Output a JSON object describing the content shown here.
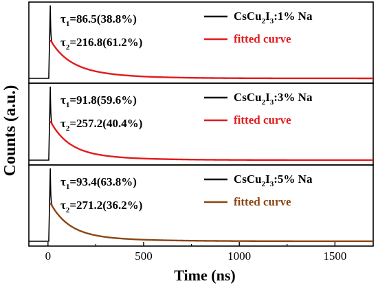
{
  "chart_data": [
    {
      "type": "line",
      "panel_text": {
        "tau1": {
          "sym": "τ",
          "sub": "1",
          "eq": "=86.5(38.8%)"
        },
        "tau2": {
          "sym": "τ",
          "sub": "2",
          "eq": "=216.8(61.2%)"
        }
      },
      "legend": [
        {
          "name_parts": [
            "CsCu",
            "2",
            "I",
            "3",
            ":1% Na"
          ],
          "color": "#000000"
        },
        {
          "name": "fitted curve",
          "color": "#e31a1c",
          "text_color": "#e31a1c"
        }
      ],
      "peak_x": 12,
      "series": [
        {
          "kind": "measured",
          "color": "#000000",
          "amplitudes": [
            0.56,
            0.44
          ],
          "taus": [
            86.5,
            216.8
          ]
        },
        {
          "kind": "fitted",
          "color": "#e31a1c",
          "amplitudes": [
            0.56,
            0.44
          ],
          "taus": [
            86.5,
            216.8
          ]
        }
      ]
    },
    {
      "type": "line",
      "panel_text": {
        "tau1": {
          "sym": "τ",
          "sub": "1",
          "eq": "=91.8(59.6%)"
        },
        "tau2": {
          "sym": "τ",
          "sub": "2",
          "eq": "=257.2(40.4%)"
        }
      },
      "legend": [
        {
          "name_parts": [
            "CsCu",
            "2",
            "I",
            "3",
            ":3% Na"
          ],
          "color": "#000000"
        },
        {
          "name": "fitted curve",
          "color": "#e31a1c",
          "text_color": "#e31a1c"
        }
      ],
      "peak_x": 12,
      "series": [
        {
          "kind": "measured",
          "color": "#000000",
          "amplitudes": [
            0.75,
            0.25
          ],
          "taus": [
            91.8,
            257.2
          ]
        },
        {
          "kind": "fitted",
          "color": "#e31a1c",
          "amplitudes": [
            0.75,
            0.25
          ],
          "taus": [
            91.8,
            257.2
          ]
        }
      ]
    },
    {
      "type": "line",
      "panel_text": {
        "tau1": {
          "sym": "τ",
          "sub": "1",
          "eq": "=93.4(63.8%)"
        },
        "tau2": {
          "sym": "τ",
          "sub": "2",
          "eq": "=271.2(36.2%)"
        }
      },
      "legend": [
        {
          "name_parts": [
            "CsCu",
            "2",
            "I",
            "3",
            ":5% Na"
          ],
          "color": "#000000"
        },
        {
          "name": "fitted curve",
          "color": "#8b4513",
          "text_color": "#8b4513"
        }
      ],
      "peak_x": 12,
      "series": [
        {
          "kind": "measured",
          "color": "#000000",
          "amplitudes": [
            0.78,
            0.22
          ],
          "taus": [
            93.4,
            271.2
          ]
        },
        {
          "kind": "fitted",
          "color": "#8b4513",
          "amplitudes": [
            0.78,
            0.22
          ],
          "taus": [
            93.4,
            271.2
          ]
        }
      ]
    }
  ],
  "axes": {
    "xlabel": "Time (ns)",
    "ylabel": "Counts (a.u.)",
    "xlim": [
      -100,
      1700
    ],
    "xticks": [
      0,
      500,
      1000,
      1500
    ],
    "xtick_labels": [
      "0",
      "500",
      "1000",
      "1500"
    ]
  }
}
